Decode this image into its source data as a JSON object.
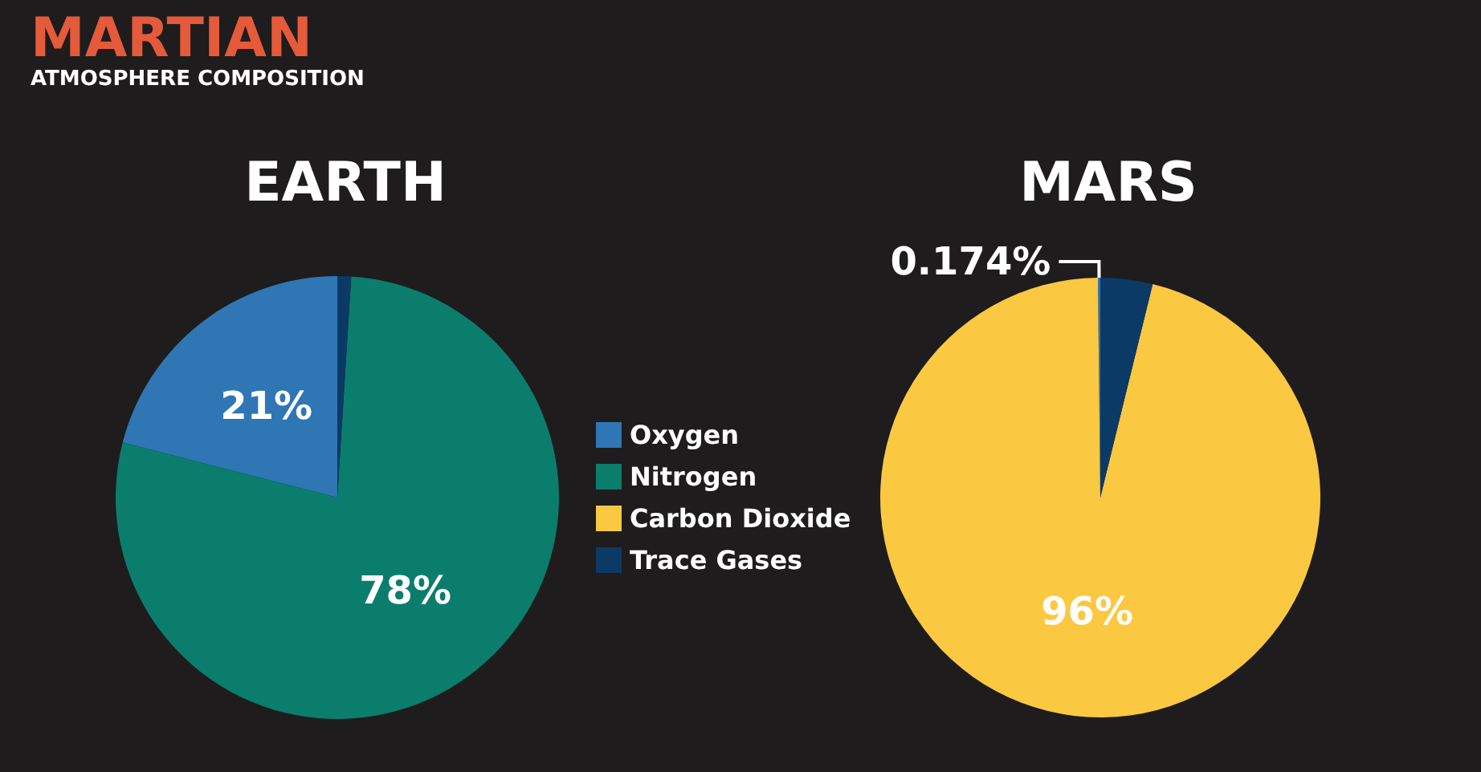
{
  "chart_data": {
    "type": "pie",
    "title": "MARTIAN",
    "subtitle": "ATMOSPHERE COMPOSITION",
    "legend": "center",
    "categories": [
      "Oxygen",
      "Nitrogen",
      "Carbon Dioxide",
      "Trace Gases"
    ],
    "colors": [
      "#2f76b4",
      "#0b7d6d",
      "#fbc841",
      "#0c3a66"
    ],
    "series": [
      {
        "name": "EARTH",
        "values": [
          21,
          78,
          null,
          1
        ],
        "value_labels": [
          "21%",
          "78%",
          null,
          null
        ]
      },
      {
        "name": "MARS",
        "values": [
          0.174,
          null,
          96,
          3.826
        ],
        "value_labels": [
          "0.174%",
          null,
          "96%",
          null
        ]
      }
    ]
  }
}
